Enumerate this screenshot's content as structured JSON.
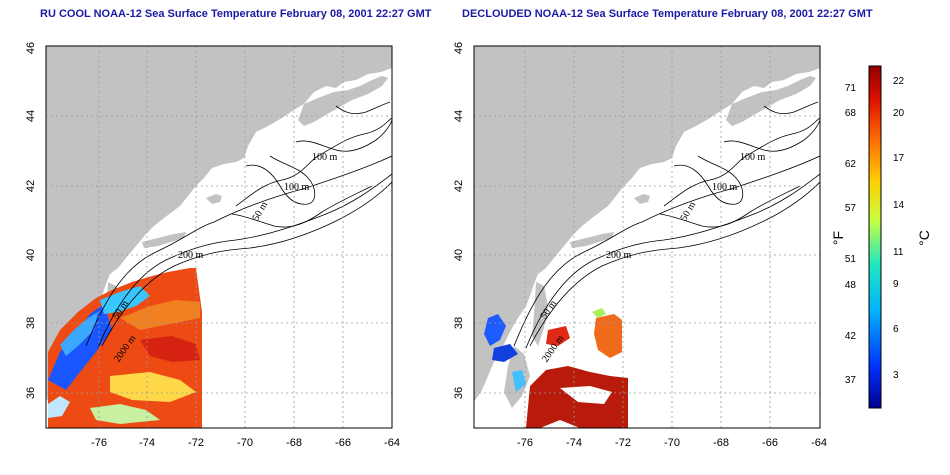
{
  "titles": {
    "left": "RU COOL NOAA-12 Sea Surface Temperature February 08, 2001 22:27 GMT",
    "right": "DECLOUDED NOAA-12 Sea Surface Temperature February 08, 2001 22:27 GMT"
  },
  "axes": {
    "x_ticks": [
      "-76",
      "-74",
      "-72",
      "-70",
      "-68",
      "-66",
      "-64"
    ],
    "y_ticks": [
      "36",
      "38",
      "40",
      "42",
      "44",
      "46"
    ]
  },
  "contour_labels": {
    "m100a": "100 m",
    "m100b": "100 m",
    "m50a": "50 m",
    "m200": "200 m",
    "m50b": "50 m",
    "m2000": "2000 m"
  },
  "colorbar": {
    "fahrenheit_label": "°F",
    "celsius_label": "°C",
    "fahrenheit_ticks": [
      "71",
      "68",
      "62",
      "57",
      "51",
      "48",
      "42",
      "37"
    ],
    "celsius_ticks": [
      "22",
      "20",
      "17",
      "14",
      "11",
      "9",
      "6",
      "3"
    ],
    "colors": [
      "#00008f",
      "#0030ff",
      "#00b0ff",
      "#20e8c0",
      "#c8ff40",
      "#ffd000",
      "#ff7000",
      "#e01000",
      "#900000"
    ]
  }
}
